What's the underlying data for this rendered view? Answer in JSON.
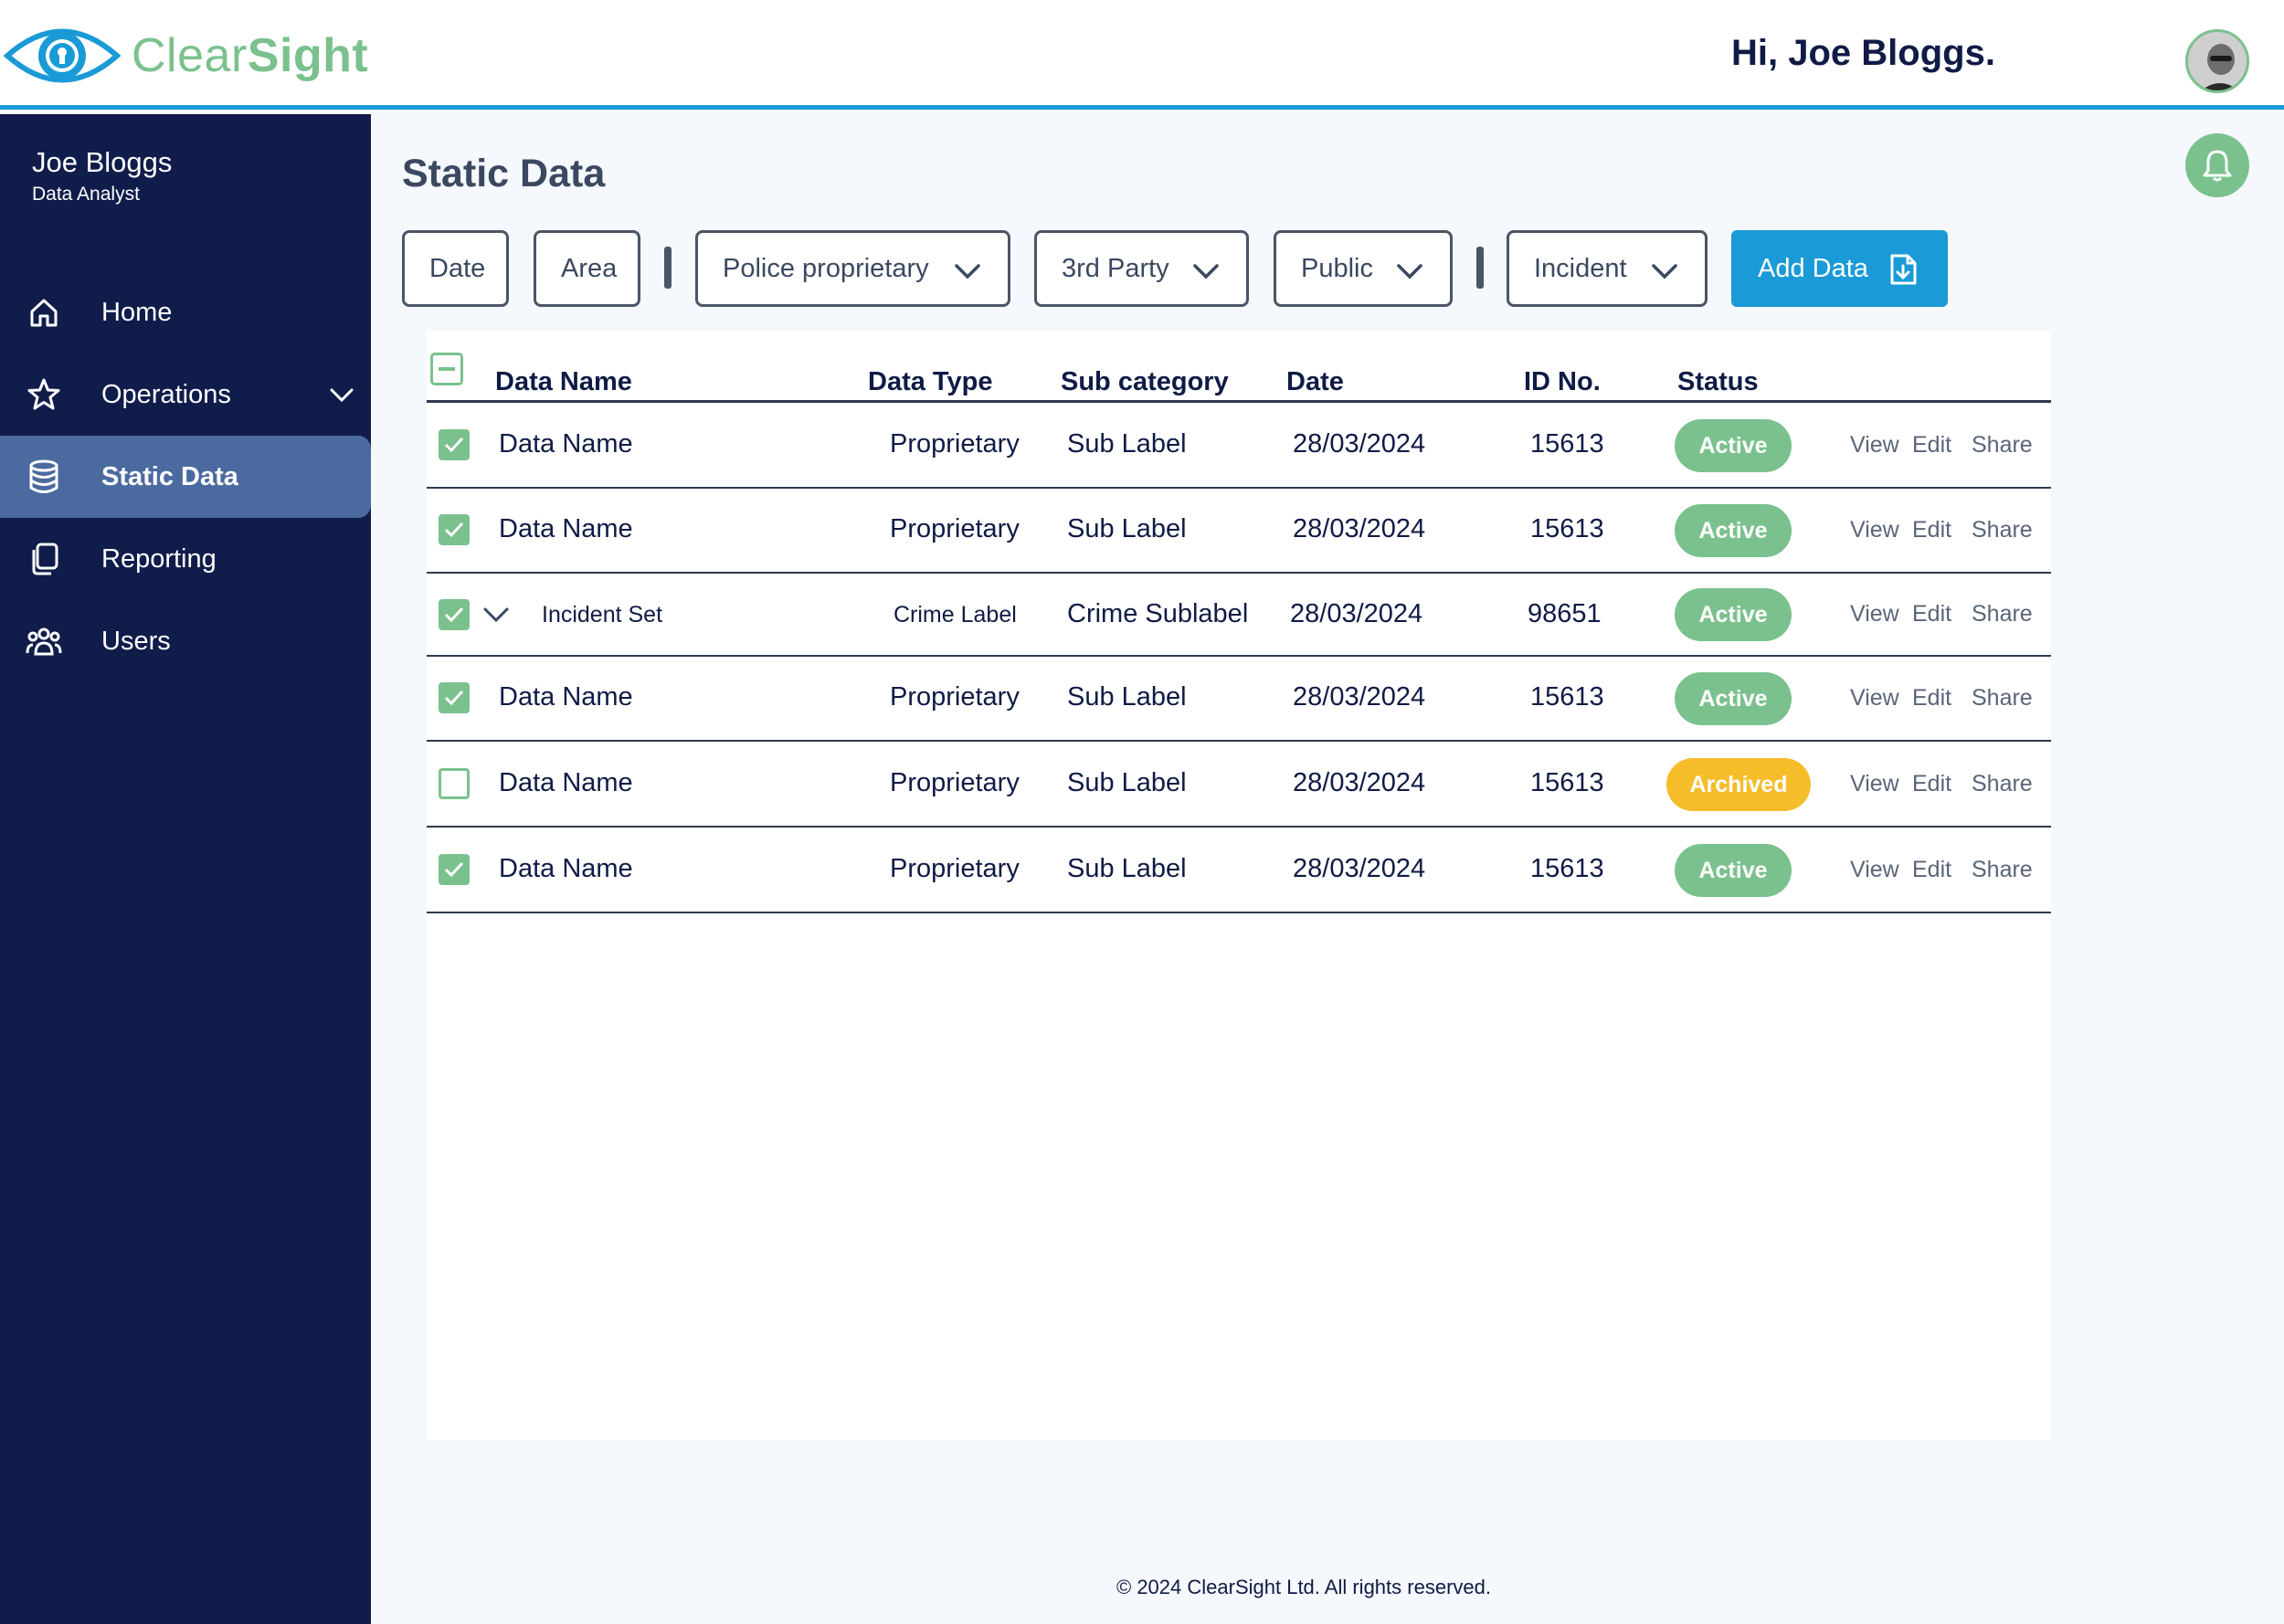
{
  "app": {
    "name_light": "Clear",
    "name_bold": "Sight"
  },
  "header": {
    "greeting": "Hi, Joe Bloggs."
  },
  "user": {
    "name": "Joe Bloggs",
    "role": "Data Analyst"
  },
  "sidebar": {
    "items": [
      {
        "label": "Home",
        "icon": "home-icon"
      },
      {
        "label": "Operations",
        "icon": "star-icon"
      },
      {
        "label": "Static Data",
        "icon": "database-icon",
        "active": true
      },
      {
        "label": "Reporting",
        "icon": "copy-icon"
      },
      {
        "label": "Users",
        "icon": "users-icon"
      }
    ]
  },
  "page": {
    "title": "Static Data"
  },
  "filters": {
    "date": "Date",
    "area": "Area",
    "police": "Police proprietary",
    "third_party": "3rd Party",
    "public": "Public",
    "incident": "Incident",
    "add_data": "Add Data"
  },
  "table": {
    "columns": [
      "Data Name",
      "Data Type",
      "Sub category",
      "Date",
      "ID No.",
      "Status"
    ],
    "actions": [
      "View",
      "Edit",
      "Share"
    ],
    "rows": [
      {
        "checked": true,
        "name": "Data Name",
        "type": "Proprietary",
        "sub": "Sub Label",
        "date": "28/03/2024",
        "id": "15613",
        "status": "Active"
      },
      {
        "checked": true,
        "name": "Data Name",
        "type": "Proprietary",
        "sub": "Sub Label",
        "date": "28/03/2024",
        "id": "15613",
        "status": "Active"
      },
      {
        "checked": true,
        "name": "Incident Set",
        "type": "Crime Label",
        "sub": "Crime Sublabel",
        "date": "28/03/2024",
        "id": "98651",
        "status": "Active",
        "expandable": true
      },
      {
        "checked": true,
        "name": "Data Name",
        "type": "Proprietary",
        "sub": "Sub Label",
        "date": "28/03/2024",
        "id": "15613",
        "status": "Active"
      },
      {
        "checked": false,
        "name": "Data Name",
        "type": "Proprietary",
        "sub": "Sub Label",
        "date": "28/03/2024",
        "id": "15613",
        "status": "Archived"
      },
      {
        "checked": true,
        "name": "Data Name",
        "type": "Proprietary",
        "sub": "Sub Label",
        "date": "28/03/2024",
        "id": "15613",
        "status": "Active"
      }
    ]
  },
  "footer": {
    "text": "© 2024 ClearSight Ltd. All rights reserved."
  },
  "colors": {
    "accent": "#1a9ad6",
    "green": "#7bc18d",
    "navy": "#101c4a",
    "amber": "#f6bd2b"
  }
}
